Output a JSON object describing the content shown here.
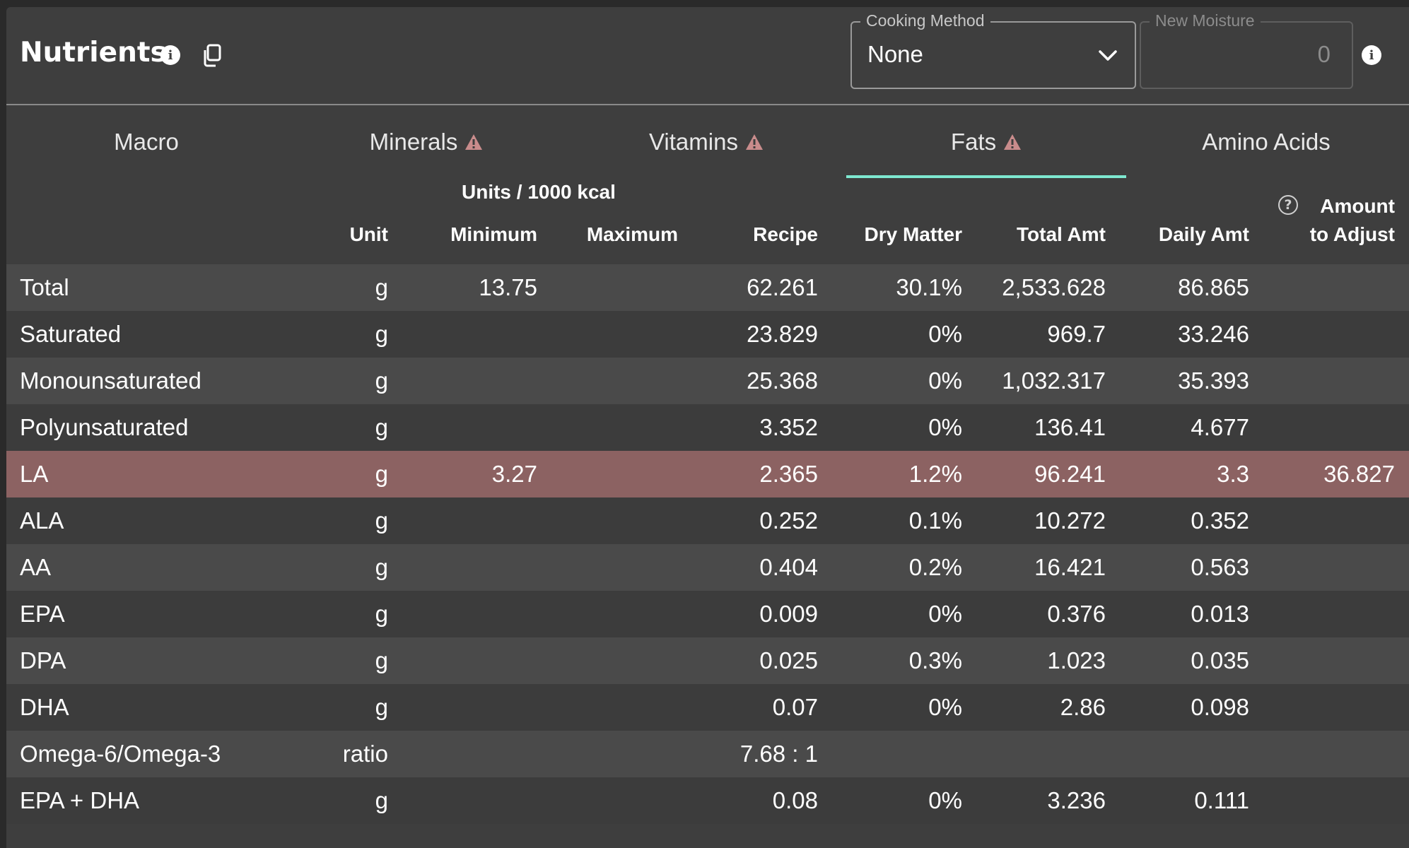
{
  "header": {
    "title": "Nutrients",
    "cooking_method": {
      "legend": "Cooking Method",
      "value": "None"
    },
    "new_moisture": {
      "legend": "New Moisture",
      "value": "0"
    }
  },
  "tabs": [
    {
      "label": "Macro",
      "warning": false,
      "active": false
    },
    {
      "label": "Minerals",
      "warning": true,
      "active": false
    },
    {
      "label": "Vitamins",
      "warning": true,
      "active": false
    },
    {
      "label": "Fats",
      "warning": true,
      "active": true
    },
    {
      "label": "Amino Acids",
      "warning": false,
      "active": false
    }
  ],
  "columns": {
    "group_label": "Units / 1000 kcal",
    "unit": "Unit",
    "minimum": "Minimum",
    "maximum": "Maximum",
    "recipe": "Recipe",
    "dry_matter": "Dry Matter",
    "total_amt": "Total Amt",
    "daily_amt": "Daily Amt",
    "amount_adjust_line1": "Amount",
    "amount_adjust_line2": "to Adjust"
  },
  "rows": [
    {
      "name": "Total",
      "unit": "g",
      "min": "13.75",
      "max": "",
      "recipe": "62.261",
      "dry": "30.1%",
      "total": "2,533.628",
      "daily": "86.865",
      "adjust": ""
    },
    {
      "name": "Saturated",
      "unit": "g",
      "min": "",
      "max": "",
      "recipe": "23.829",
      "dry": "0%",
      "total": "969.7",
      "daily": "33.246",
      "adjust": ""
    },
    {
      "name": "Monounsaturated",
      "unit": "g",
      "min": "",
      "max": "",
      "recipe": "25.368",
      "dry": "0%",
      "total": "1,032.317",
      "daily": "35.393",
      "adjust": ""
    },
    {
      "name": "Polyunsaturated",
      "unit": "g",
      "min": "",
      "max": "",
      "recipe": "3.352",
      "dry": "0%",
      "total": "136.41",
      "daily": "4.677",
      "adjust": ""
    },
    {
      "name": "LA",
      "unit": "g",
      "min": "3.27",
      "max": "",
      "recipe": "2.365",
      "dry": "1.2%",
      "total": "96.241",
      "daily": "3.3",
      "adjust": "36.827",
      "highlight": true
    },
    {
      "name": "ALA",
      "unit": "g",
      "min": "",
      "max": "",
      "recipe": "0.252",
      "dry": "0.1%",
      "total": "10.272",
      "daily": "0.352",
      "adjust": ""
    },
    {
      "name": "AA",
      "unit": "g",
      "min": "",
      "max": "",
      "recipe": "0.404",
      "dry": "0.2%",
      "total": "16.421",
      "daily": "0.563",
      "adjust": ""
    },
    {
      "name": "EPA",
      "unit": "g",
      "min": "",
      "max": "",
      "recipe": "0.009",
      "dry": "0%",
      "total": "0.376",
      "daily": "0.013",
      "adjust": ""
    },
    {
      "name": "DPA",
      "unit": "g",
      "min": "",
      "max": "",
      "recipe": "0.025",
      "dry": "0.3%",
      "total": "1.023",
      "daily": "0.035",
      "adjust": ""
    },
    {
      "name": "DHA",
      "unit": "g",
      "min": "",
      "max": "",
      "recipe": "0.07",
      "dry": "0%",
      "total": "2.86",
      "daily": "0.098",
      "adjust": ""
    },
    {
      "name": "Omega-6/Omega-3",
      "unit": "ratio",
      "min": "",
      "max": "",
      "recipe": "7.68 : 1",
      "dry": "",
      "total": "",
      "daily": "",
      "adjust": ""
    },
    {
      "name": "EPA + DHA",
      "unit": "g",
      "min": "",
      "max": "",
      "recipe": "0.08",
      "dry": "0%",
      "total": "3.236",
      "daily": "0.111",
      "adjust": ""
    }
  ],
  "colors": {
    "accent_tab_underline": "#7ee8d0",
    "warning": "#c98c8c",
    "highlight_row": "#8c6262"
  },
  "icons": [
    "info-icon",
    "copy-icon",
    "chevron-down-icon",
    "warning-icon",
    "help-icon"
  ]
}
